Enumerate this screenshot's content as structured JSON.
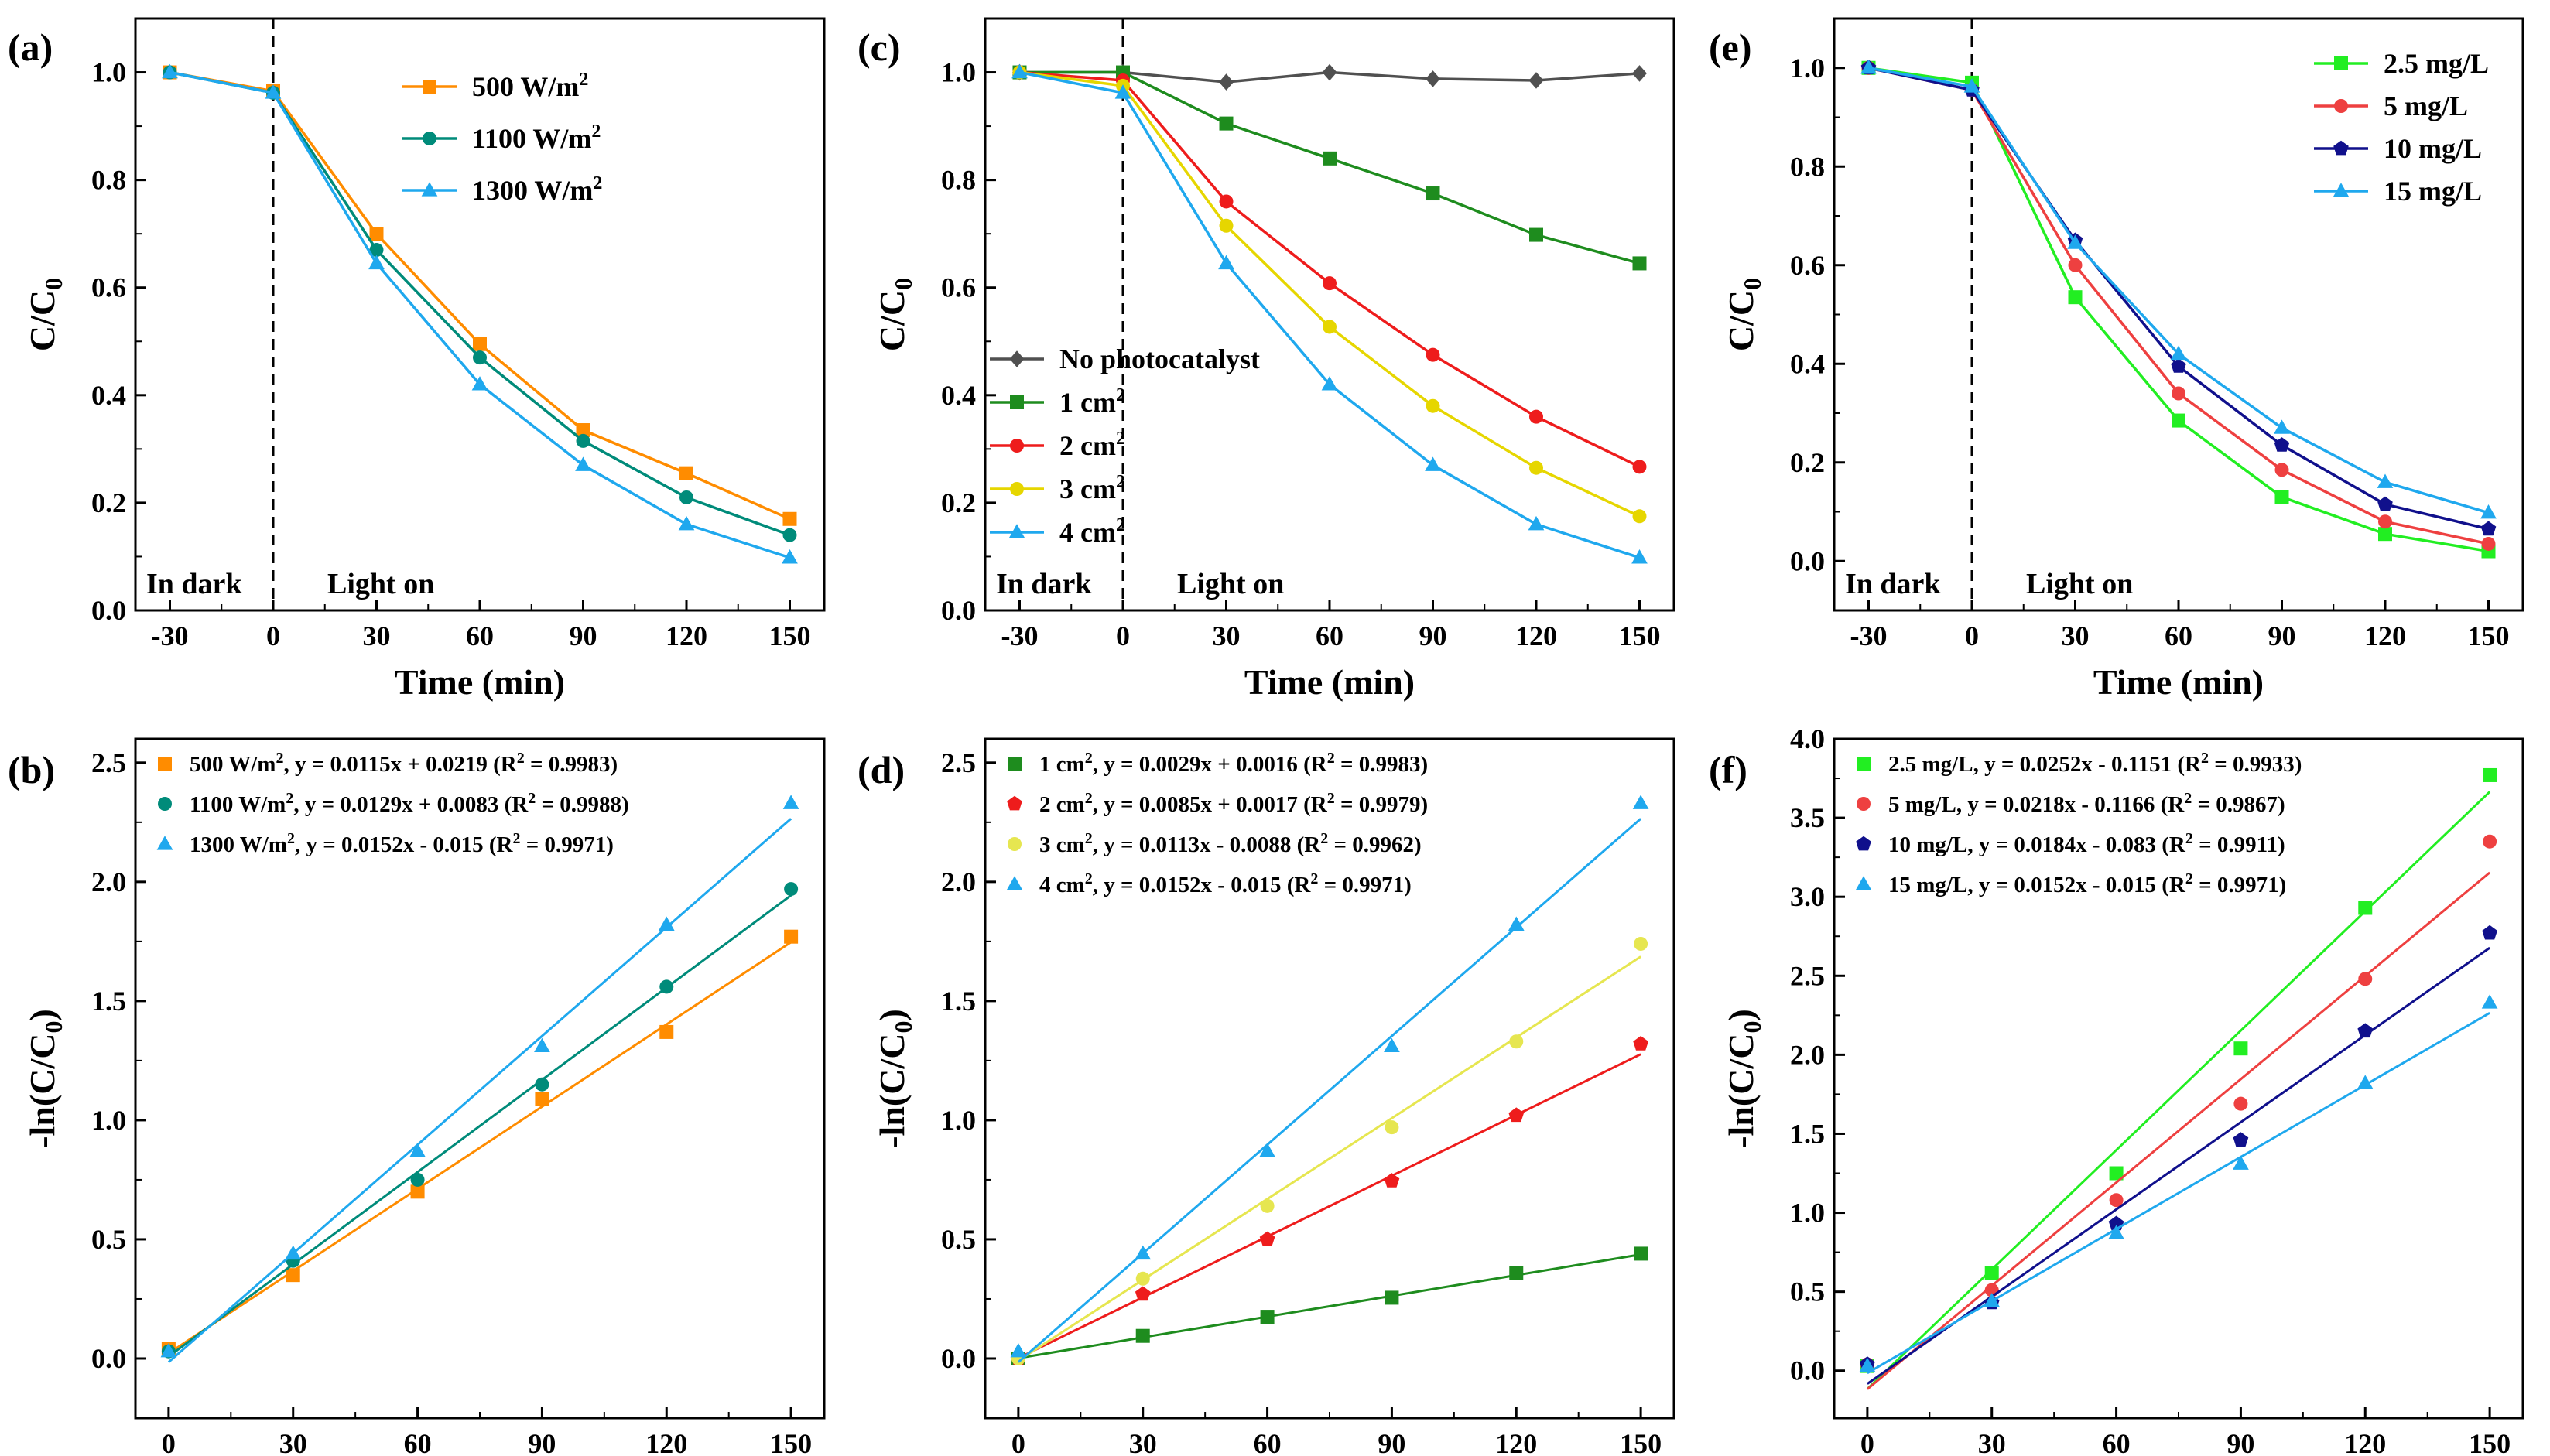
{
  "figure": {
    "panels": [
      "(a)",
      "(b)",
      "(c)",
      "(d)",
      "(e)",
      "(f)"
    ]
  },
  "chart_data": [
    {
      "id": "a",
      "label": "(a)",
      "type": "line",
      "xlabel": "Time (min)",
      "ylabel": "C/C",
      "ylabel_sub": "0",
      "xlim": [
        -40,
        160
      ],
      "ylim": [
        0,
        1.1
      ],
      "xticks": [
        -30,
        0,
        30,
        60,
        90,
        120,
        150
      ],
      "xtick_labels": [
        "-30",
        "0",
        "30",
        "60",
        "90",
        "120",
        "150"
      ],
      "yticks": [
        0,
        0.2,
        0.4,
        0.6,
        0.8,
        1.0
      ],
      "ytick_labels": [
        "0.0",
        "0.2",
        "0.4",
        "0.6",
        "0.8",
        "1.0"
      ],
      "x": [
        -30,
        0,
        30,
        60,
        90,
        120,
        150
      ],
      "vline": 0,
      "annotations": [
        "In dark",
        "Light on"
      ],
      "legend_pos": "top-center",
      "series": [
        {
          "name": "500 W/m",
          "sup": "2",
          "color": "#FF8C00",
          "marker": "square",
          "values": [
            1.0,
            0.965,
            0.7,
            0.495,
            0.335,
            0.255,
            0.17
          ]
        },
        {
          "name": "1100 W/m",
          "sup": "2",
          "color": "#008B7A",
          "marker": "circle",
          "values": [
            1.0,
            0.962,
            0.67,
            0.47,
            0.315,
            0.21,
            0.14
          ]
        },
        {
          "name": "1300 W/m",
          "sup": "2",
          "color": "#1FA8EE",
          "marker": "triangle",
          "values": [
            1.0,
            0.962,
            0.645,
            0.42,
            0.27,
            0.16,
            0.098
          ]
        }
      ]
    },
    {
      "id": "c",
      "label": "(c)",
      "type": "line",
      "xlabel": "Time (min)",
      "ylabel": "C/C",
      "ylabel_sub": "0",
      "xlim": [
        -40,
        160
      ],
      "ylim": [
        0,
        1.1
      ],
      "xticks": [
        -30,
        0,
        30,
        60,
        90,
        120,
        150
      ],
      "xtick_labels": [
        "-30",
        "0",
        "30",
        "60",
        "90",
        "120",
        "150"
      ],
      "yticks": [
        0,
        0.2,
        0.4,
        0.6,
        0.8,
        1.0
      ],
      "ytick_labels": [
        "0.0",
        "0.2",
        "0.4",
        "0.6",
        "0.8",
        "1.0"
      ],
      "x": [
        -30,
        0,
        30,
        60,
        90,
        120,
        150
      ],
      "vline": 0,
      "annotations": [
        "In dark",
        "Light on"
      ],
      "legend_pos": "lower-left",
      "series": [
        {
          "name": "No photocatalyst",
          "sup": "",
          "color": "#505050",
          "marker": "diamond",
          "values": [
            1.0,
            1.0,
            0.982,
            1.0,
            0.988,
            0.985,
            0.998
          ]
        },
        {
          "name": "1 cm",
          "sup": "2",
          "color": "#1E8C1E",
          "marker": "square",
          "values": [
            1.0,
            1.0,
            0.905,
            0.84,
            0.775,
            0.698,
            0.645
          ]
        },
        {
          "name": "2 cm",
          "sup": "2",
          "color": "#EE1C1C",
          "marker": "circle",
          "values": [
            1.0,
            0.985,
            0.76,
            0.608,
            0.475,
            0.36,
            0.267
          ]
        },
        {
          "name": "3 cm",
          "sup": "2",
          "color": "#E6D600",
          "marker": "circle",
          "values": [
            1.0,
            0.975,
            0.715,
            0.527,
            0.38,
            0.265,
            0.175
          ]
        },
        {
          "name": "4 cm",
          "sup": "2",
          "color": "#1FA8EE",
          "marker": "triangle",
          "values": [
            1.0,
            0.962,
            0.645,
            0.42,
            0.27,
            0.16,
            0.098
          ]
        }
      ]
    },
    {
      "id": "e",
      "label": "(e)",
      "type": "line",
      "xlabel": "Time (min)",
      "ylabel": "C/C",
      "ylabel_sub": "0",
      "xlim": [
        -40,
        160
      ],
      "ylim": [
        -0.1,
        1.1
      ],
      "xticks": [
        -30,
        0,
        30,
        60,
        90,
        120,
        150
      ],
      "xtick_labels": [
        "-30",
        "0",
        "30",
        "60",
        "90",
        "120",
        "150"
      ],
      "yticks": [
        0,
        0.2,
        0.4,
        0.6,
        0.8,
        1.0
      ],
      "ytick_labels": [
        "0.0",
        "0.2",
        "0.4",
        "0.6",
        "0.8",
        "1.0"
      ],
      "x": [
        -30,
        0,
        30,
        60,
        90,
        120,
        150
      ],
      "vline": 0,
      "annotations": [
        "In dark",
        "Light on"
      ],
      "legend_pos": "top-right",
      "series": [
        {
          "name": "2.5 mg/L",
          "sup": "",
          "color": "#22EE22",
          "marker": "square",
          "values": [
            1.0,
            0.97,
            0.535,
            0.285,
            0.13,
            0.055,
            0.02
          ]
        },
        {
          "name": "5 mg/L",
          "sup": "",
          "color": "#EE4040",
          "marker": "circle",
          "values": [
            1.0,
            0.955,
            0.6,
            0.34,
            0.185,
            0.08,
            0.035
          ]
        },
        {
          "name": "10 mg/L",
          "sup": "",
          "color": "#10108C",
          "marker": "pentagon",
          "values": [
            1.0,
            0.955,
            0.65,
            0.395,
            0.235,
            0.115,
            0.065
          ]
        },
        {
          "name": "15 mg/L",
          "sup": "",
          "color": "#1FA8EE",
          "marker": "triangle",
          "values": [
            1.0,
            0.962,
            0.645,
            0.42,
            0.27,
            0.16,
            0.098
          ]
        }
      ]
    },
    {
      "id": "b",
      "label": "(b)",
      "type": "scatter",
      "xlabel": "Time (min)",
      "ylabel": "-ln(C/C",
      "ylabel_sub": "0",
      "ylabel_tail": ")",
      "xlim": [
        -8,
        158
      ],
      "ylim": [
        -0.25,
        2.6
      ],
      "xticks": [
        0,
        30,
        60,
        90,
        120,
        150
      ],
      "xtick_labels": [
        "0",
        "30",
        "60",
        "90",
        "120",
        "150"
      ],
      "yticks": [
        0,
        0.5,
        1.0,
        1.5,
        2.0,
        2.5
      ],
      "ytick_labels": [
        "0.0",
        "0.5",
        "1.0",
        "1.5",
        "2.0",
        "2.5"
      ],
      "x": [
        0,
        30,
        60,
        90,
        120,
        150
      ],
      "legend_pos": "top-left",
      "series": [
        {
          "name": "500 W/m",
          "sup": "2",
          "eq": ",    y = 0.0115x + 0.0219 (R",
          "r2": " = 0.9983)",
          "color": "#FF8C00",
          "marker": "square",
          "slope": 0.0115,
          "intercept": 0.0219,
          "values": [
            0.04,
            0.35,
            0.7,
            1.09,
            1.37,
            1.77
          ]
        },
        {
          "name": "1100 W/m",
          "sup": "2",
          "eq": ",  y = 0.0129x + 0.0083 (R",
          "r2": " = 0.9988)",
          "color": "#008B7A",
          "marker": "circle",
          "values": [
            0.03,
            0.41,
            0.75,
            1.15,
            1.56,
            1.97
          ],
          "slope": 0.0129,
          "intercept": 0.0083
        },
        {
          "name": "1300 W/m",
          "sup": "2",
          "eq": ",  y = 0.0152x - 0.015    (R",
          "r2": " = 0.9971)",
          "color": "#1FA8EE",
          "marker": "triangle",
          "slope": 0.0152,
          "intercept": -0.015,
          "values": [
            0.03,
            0.44,
            0.87,
            1.31,
            1.82,
            2.33
          ]
        }
      ]
    },
    {
      "id": "d",
      "label": "(d)",
      "type": "scatter",
      "xlabel": "Time (min)",
      "ylabel": "-ln(C/C",
      "ylabel_sub": "0",
      "ylabel_tail": ")",
      "xlim": [
        -8,
        158
      ],
      "ylim": [
        -0.25,
        2.6
      ],
      "xticks": [
        0,
        30,
        60,
        90,
        120,
        150
      ],
      "xtick_labels": [
        "0",
        "30",
        "60",
        "90",
        "120",
        "150"
      ],
      "yticks": [
        0,
        0.5,
        1.0,
        1.5,
        2.0,
        2.5
      ],
      "ytick_labels": [
        "0.0",
        "0.5",
        "1.0",
        "1.5",
        "2.0",
        "2.5"
      ],
      "x": [
        0,
        30,
        60,
        90,
        120,
        150
      ],
      "legend_pos": "top-left",
      "series": [
        {
          "name": "1 cm",
          "sup": "2",
          "eq": ",  y = 0.0029x + 0.0016 (R",
          "r2": " = 0.9983)",
          "color": "#1E8C1E",
          "marker": "square",
          "slope": 0.0029,
          "intercept": 0.0016,
          "values": [
            0.0,
            0.095,
            0.175,
            0.255,
            0.36,
            0.44
          ]
        },
        {
          "name": "2 cm",
          "sup": "2",
          "eq": ",  y = 0.0085x + 0.0017 (R",
          "r2": " = 0.9979)",
          "color": "#EE1C1C",
          "marker": "pentagon",
          "slope": 0.0085,
          "intercept": 0.0017,
          "values": [
            0.0,
            0.27,
            0.5,
            0.745,
            1.02,
            1.32
          ]
        },
        {
          "name": "3 cm",
          "sup": "2",
          "eq": ",  y = 0.0113x - 0.0088  (R",
          "r2": " = 0.9962)",
          "color": "#E6E650",
          "marker": "circle",
          "slope": 0.0113,
          "intercept": -0.0088,
          "values": [
            0.0,
            0.335,
            0.64,
            0.97,
            1.33,
            1.74
          ]
        },
        {
          "name": "4 cm",
          "sup": "2",
          "eq": ",  y = 0.0152x - 0.015      (R",
          "r2": " = 0.9971)",
          "color": "#1FA8EE",
          "marker": "triangle",
          "slope": 0.0152,
          "intercept": -0.015,
          "values": [
            0.03,
            0.44,
            0.87,
            1.31,
            1.82,
            2.33
          ]
        }
      ]
    },
    {
      "id": "f",
      "label": "(f)",
      "type": "scatter",
      "xlabel": "Time (min)",
      "ylabel": "-ln(C/C",
      "ylabel_sub": "0",
      "ylabel_tail": ")",
      "xlim": [
        -8,
        158
      ],
      "ylim": [
        -0.3,
        4.0
      ],
      "xticks": [
        0,
        30,
        60,
        90,
        120,
        150
      ],
      "xtick_labels": [
        "0",
        "30",
        "60",
        "90",
        "120",
        "150"
      ],
      "yticks": [
        0,
        0.5,
        1.0,
        1.5,
        2.0,
        2.5,
        3.0,
        3.5,
        4.0
      ],
      "ytick_labels": [
        "0.0",
        "0.5",
        "1.0",
        "1.5",
        "2.0",
        "2.5",
        "3.0",
        "3.5",
        "4.0"
      ],
      "x": [
        0,
        30,
        60,
        90,
        120,
        150
      ],
      "legend_pos": "top-left",
      "series": [
        {
          "name": "2.5 mg/L",
          "sup": "",
          "eq": ",  y = 0.0252x - 0.1151 (R",
          "r2": " = 0.9933)",
          "color": "#22EE22",
          "marker": "square",
          "slope": 0.0252,
          "intercept": -0.1151,
          "values": [
            0.03,
            0.62,
            1.25,
            2.04,
            2.93,
            3.77
          ]
        },
        {
          "name": "5 mg/L",
          "sup": "",
          "eq": ",      y = 0.0218x - 0.1166 (R",
          "r2": " = 0.9867)",
          "color": "#EE4040",
          "marker": "circle",
          "slope": 0.0218,
          "intercept": -0.1166,
          "values": [
            0.04,
            0.51,
            1.08,
            1.69,
            2.48,
            3.35
          ]
        },
        {
          "name": "10 mg/L",
          "sup": "",
          "eq": ",    y = 0.0184x - 0.083    (R",
          "r2": " = 0.9911)",
          "color": "#10108C",
          "marker": "pentagon",
          "slope": 0.0184,
          "intercept": -0.083,
          "values": [
            0.04,
            0.43,
            0.93,
            1.46,
            2.15,
            2.77
          ]
        },
        {
          "name": "15 mg/L",
          "sup": "",
          "eq": ",    y = 0.0152x - 0.015    (R",
          "r2": " = 0.9971)",
          "color": "#1FA8EE",
          "marker": "triangle",
          "slope": 0.0152,
          "intercept": -0.015,
          "values": [
            0.03,
            0.44,
            0.87,
            1.31,
            1.82,
            2.33
          ]
        }
      ]
    }
  ]
}
